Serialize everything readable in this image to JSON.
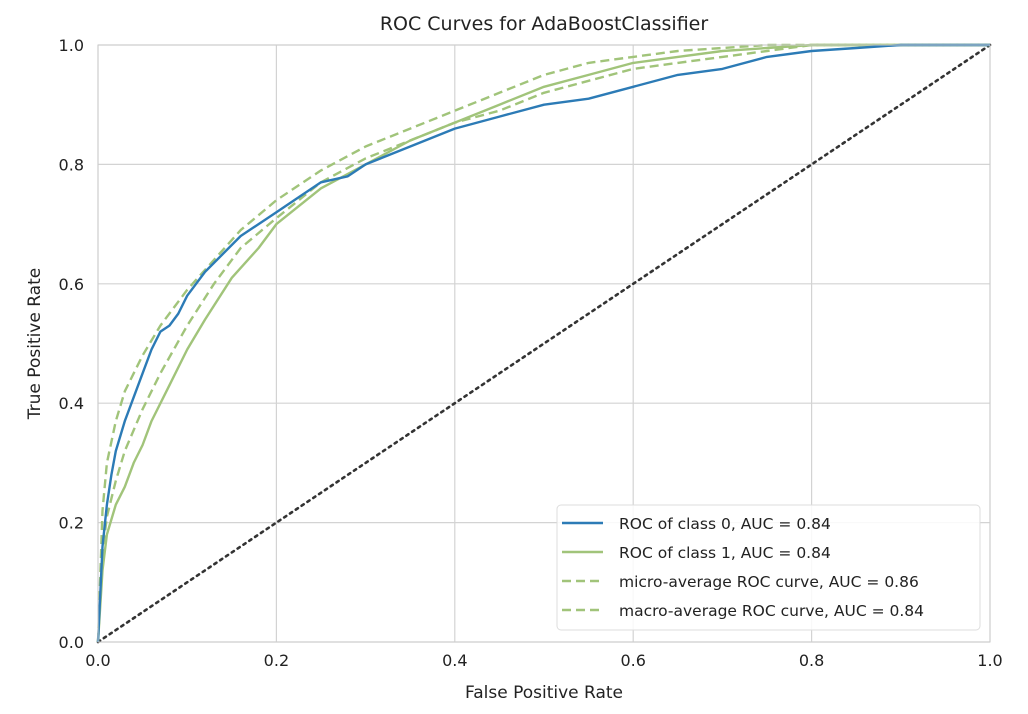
{
  "chart_data": {
    "type": "line",
    "title": "ROC Curves for AdaBoostClassifier",
    "xlabel": "False Positive Rate",
    "ylabel": "True Positive Rate",
    "xlim": [
      0.0,
      1.0
    ],
    "ylim": [
      0.0,
      1.0
    ],
    "xticks": [
      "0.0",
      "0.2",
      "0.4",
      "0.6",
      "0.8",
      "1.0"
    ],
    "yticks": [
      "0.0",
      "0.2",
      "0.4",
      "0.6",
      "0.8",
      "1.0"
    ],
    "grid": true,
    "legend_position": "lower-right",
    "series": [
      {
        "name": "ROC of class 0, AUC = 0.84",
        "color": "#2c7bb6",
        "style": "solid",
        "x": [
          0.0,
          0.005,
          0.01,
          0.015,
          0.02,
          0.03,
          0.04,
          0.05,
          0.06,
          0.07,
          0.08,
          0.09,
          0.1,
          0.12,
          0.14,
          0.16,
          0.18,
          0.2,
          0.22,
          0.25,
          0.28,
          0.3,
          0.35,
          0.4,
          0.45,
          0.5,
          0.55,
          0.6,
          0.65,
          0.7,
          0.75,
          0.8,
          0.85,
          0.9,
          1.0
        ],
        "y": [
          0.0,
          0.16,
          0.23,
          0.28,
          0.32,
          0.37,
          0.41,
          0.45,
          0.49,
          0.52,
          0.53,
          0.55,
          0.58,
          0.62,
          0.65,
          0.68,
          0.7,
          0.72,
          0.74,
          0.77,
          0.78,
          0.8,
          0.83,
          0.86,
          0.88,
          0.9,
          0.91,
          0.93,
          0.95,
          0.96,
          0.98,
          0.99,
          0.995,
          1.0,
          1.0
        ]
      },
      {
        "name": "ROC of class 1, AUC = 0.84",
        "color": "#a1c47a",
        "style": "solid",
        "x": [
          0.0,
          0.005,
          0.01,
          0.02,
          0.03,
          0.04,
          0.05,
          0.06,
          0.08,
          0.1,
          0.12,
          0.15,
          0.18,
          0.2,
          0.25,
          0.3,
          0.35,
          0.4,
          0.45,
          0.5,
          0.55,
          0.6,
          0.65,
          0.7,
          0.75,
          0.8,
          0.9,
          1.0
        ],
        "y": [
          0.0,
          0.12,
          0.18,
          0.23,
          0.26,
          0.3,
          0.33,
          0.37,
          0.43,
          0.49,
          0.54,
          0.61,
          0.66,
          0.7,
          0.76,
          0.8,
          0.84,
          0.87,
          0.9,
          0.93,
          0.95,
          0.97,
          0.98,
          0.99,
          0.995,
          1.0,
          1.0,
          1.0
        ]
      },
      {
        "name": "micro-average ROC curve, AUC = 0.86",
        "color": "#a1c47a",
        "style": "dashed",
        "x": [
          0.0,
          0.005,
          0.01,
          0.02,
          0.03,
          0.05,
          0.07,
          0.1,
          0.13,
          0.16,
          0.2,
          0.25,
          0.3,
          0.35,
          0.4,
          0.45,
          0.5,
          0.55,
          0.6,
          0.65,
          0.7,
          0.75,
          0.8,
          0.9,
          1.0
        ],
        "y": [
          0.0,
          0.22,
          0.3,
          0.37,
          0.42,
          0.48,
          0.53,
          0.59,
          0.64,
          0.69,
          0.74,
          0.79,
          0.83,
          0.86,
          0.89,
          0.92,
          0.95,
          0.97,
          0.98,
          0.99,
          0.995,
          1.0,
          1.0,
          1.0,
          1.0
        ]
      },
      {
        "name": "macro-average ROC curve, AUC = 0.84",
        "color": "#a1c47a",
        "style": "dashed",
        "x": [
          0.0,
          0.005,
          0.01,
          0.02,
          0.03,
          0.05,
          0.07,
          0.1,
          0.13,
          0.16,
          0.2,
          0.25,
          0.3,
          0.35,
          0.4,
          0.45,
          0.5,
          0.55,
          0.6,
          0.65,
          0.7,
          0.75,
          0.8,
          0.9,
          1.0
        ],
        "y": [
          0.0,
          0.15,
          0.21,
          0.27,
          0.32,
          0.39,
          0.45,
          0.53,
          0.6,
          0.66,
          0.71,
          0.77,
          0.81,
          0.84,
          0.87,
          0.89,
          0.92,
          0.94,
          0.96,
          0.97,
          0.98,
          0.99,
          1.0,
          1.0,
          1.0
        ]
      },
      {
        "name": "",
        "color": "#333333",
        "style": "dotted",
        "x": [
          0.0,
          1.0
        ],
        "y": [
          0.0,
          1.0
        ]
      }
    ]
  }
}
